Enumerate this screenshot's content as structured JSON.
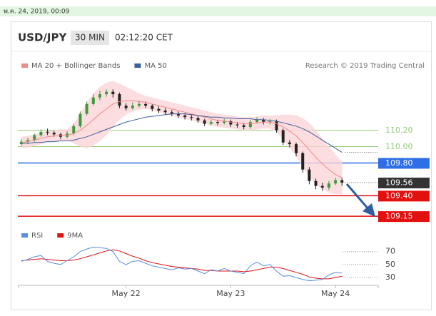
{
  "timestamp": "พ.ค. 24, 2019, 00:09",
  "header": {
    "pair": "USD/JPY",
    "interval": "30 MIN",
    "time": "02:12:20 CET",
    "credit": "Research © 2019 Trading Central"
  },
  "chart_data": [
    {
      "type": "candlestick",
      "x": [
        0,
        1.5,
        3,
        4.5,
        6,
        7.5,
        9,
        10.5,
        12,
        13.5,
        15,
        16.5,
        18,
        19.5,
        21,
        22.5,
        24,
        25.5,
        27,
        28.5,
        30,
        31.5,
        33,
        34.5,
        36,
        37.5,
        39,
        40.5,
        42,
        43.5,
        45,
        46.5,
        48,
        49.5,
        51,
        52.5,
        54,
        55.5,
        57,
        58.5,
        60,
        61.5,
        63,
        64.5,
        66,
        67.5,
        69,
        70.5,
        72,
        73.5
      ],
      "candles": {
        "open": [
          110.03,
          110.06,
          110.08,
          110.14,
          110.18,
          110.17,
          110.15,
          110.12,
          110.16,
          110.25,
          110.4,
          110.52,
          110.6,
          110.64,
          110.67,
          110.64,
          110.5,
          110.47,
          110.5,
          110.52,
          110.5,
          110.46,
          110.44,
          110.42,
          110.4,
          110.38,
          110.36,
          110.35,
          110.32,
          110.28,
          110.3,
          110.29,
          110.31,
          110.27,
          110.26,
          110.24,
          110.3,
          110.33,
          110.3,
          110.31,
          110.2,
          110.05,
          110.03,
          109.92,
          109.72,
          109.58,
          109.52,
          109.5,
          109.55,
          109.59
        ],
        "high": [
          110.09,
          110.11,
          110.16,
          110.21,
          110.22,
          110.19,
          110.17,
          110.19,
          110.28,
          110.43,
          110.55,
          110.64,
          110.68,
          110.7,
          110.7,
          110.66,
          110.53,
          110.54,
          110.56,
          110.55,
          110.52,
          110.49,
          110.47,
          110.45,
          110.43,
          110.41,
          110.39,
          110.37,
          110.34,
          110.33,
          110.33,
          110.34,
          110.33,
          110.3,
          110.29,
          110.33,
          110.36,
          110.35,
          110.34,
          110.33,
          110.22,
          110.08,
          110.05,
          109.94,
          109.75,
          109.61,
          109.56,
          109.58,
          109.62,
          109.62
        ],
        "low": [
          110.01,
          110.03,
          110.06,
          110.12,
          110.14,
          110.12,
          110.09,
          110.1,
          110.14,
          110.23,
          110.38,
          110.5,
          110.57,
          110.61,
          110.6,
          110.47,
          110.44,
          110.45,
          110.48,
          110.47,
          110.43,
          110.41,
          110.39,
          110.37,
          110.35,
          110.33,
          110.32,
          110.29,
          110.25,
          110.26,
          110.26,
          110.27,
          110.24,
          110.23,
          110.21,
          110.22,
          110.28,
          110.27,
          110.27,
          110.17,
          110.02,
          109.99,
          109.88,
          109.68,
          109.54,
          109.48,
          109.46,
          109.47,
          109.53,
          109.52
        ],
        "close": [
          110.06,
          110.08,
          110.14,
          110.18,
          110.17,
          110.15,
          110.12,
          110.16,
          110.25,
          110.4,
          110.52,
          110.6,
          110.64,
          110.67,
          110.64,
          110.5,
          110.47,
          110.5,
          110.52,
          110.5,
          110.46,
          110.44,
          110.42,
          110.4,
          110.38,
          110.36,
          110.35,
          110.32,
          110.28,
          110.3,
          110.29,
          110.31,
          110.27,
          110.26,
          110.24,
          110.3,
          110.33,
          110.3,
          110.31,
          110.2,
          110.05,
          110.03,
          109.92,
          109.72,
          109.58,
          109.52,
          109.5,
          109.55,
          109.59,
          109.56
        ],
        "up_color": "#3c9a3c",
        "down_color": "#222222"
      },
      "series": [
        {
          "name": "MA 20 + Bollinger Bands",
          "color": "#f08a8a",
          "band_color": "#fbd5d8",
          "values": [
            110.05,
            110.06,
            110.08,
            110.1,
            110.12,
            110.13,
            110.14,
            110.14,
            110.16,
            110.2,
            110.26,
            110.33,
            110.4,
            110.46,
            110.52,
            110.55,
            110.56,
            110.56,
            110.55,
            110.54,
            110.52,
            110.5,
            110.48,
            110.46,
            110.44,
            110.42,
            110.4,
            110.38,
            110.36,
            110.34,
            110.32,
            110.31,
            110.3,
            110.29,
            110.28,
            110.28,
            110.29,
            110.3,
            110.3,
            110.28,
            110.24,
            110.19,
            110.13,
            110.05,
            109.96,
            109.87,
            109.79,
            109.72,
            109.66,
            109.62
          ],
          "upper": [
            110.12,
            110.13,
            110.15,
            110.17,
            110.19,
            110.2,
            110.21,
            110.21,
            110.28,
            110.4,
            110.54,
            110.65,
            110.73,
            110.78,
            110.8,
            110.77,
            110.73,
            110.69,
            110.65,
            110.62,
            110.6,
            110.58,
            110.56,
            110.54,
            110.52,
            110.5,
            110.48,
            110.46,
            110.44,
            110.42,
            110.4,
            110.39,
            110.38,
            110.37,
            110.36,
            110.36,
            110.37,
            110.38,
            110.38,
            110.38,
            110.39,
            110.39,
            110.38,
            110.35,
            110.29,
            110.2,
            110.1,
            110.0,
            109.9,
            109.82
          ],
          "lower": [
            109.98,
            109.99,
            110.01,
            110.03,
            110.05,
            110.06,
            110.07,
            110.07,
            110.04,
            110.0,
            109.98,
            110.01,
            110.07,
            110.14,
            110.24,
            110.33,
            110.39,
            110.43,
            110.45,
            110.46,
            110.44,
            110.42,
            110.4,
            110.38,
            110.36,
            110.34,
            110.32,
            110.3,
            110.28,
            110.26,
            110.24,
            110.23,
            110.22,
            110.21,
            110.2,
            110.2,
            110.21,
            110.22,
            110.22,
            110.18,
            110.09,
            109.99,
            109.88,
            109.75,
            109.63,
            109.54,
            109.48,
            109.44,
            109.42,
            109.42
          ]
        },
        {
          "name": "MA 50",
          "color": "#3f5f9f",
          "values": [
            110.04,
            110.04,
            110.05,
            110.05,
            110.06,
            110.06,
            110.07,
            110.07,
            110.08,
            110.1,
            110.12,
            110.15,
            110.18,
            110.21,
            110.24,
            110.27,
            110.3,
            110.32,
            110.34,
            110.36,
            110.37,
            110.38,
            110.39,
            110.4,
            110.4,
            110.4,
            110.39,
            110.38,
            110.37,
            110.36,
            110.36,
            110.35,
            110.35,
            110.34,
            110.34,
            110.34,
            110.33,
            110.33,
            110.32,
            110.31,
            110.29,
            110.27,
            110.25,
            110.22,
            110.18,
            110.13,
            110.08,
            110.03,
            109.98,
            109.93
          ]
        }
      ],
      "levels": [
        {
          "value": 110.2,
          "label": "110.20",
          "color": "#96cc7a",
          "boxed": false,
          "dotted": false
        },
        {
          "value": 110.0,
          "label": "110.00",
          "color": "#96cc7a",
          "boxed": false,
          "dotted": false
        },
        {
          "value": 109.8,
          "label": "109.80",
          "color": "#2f6fe6",
          "boxed": true,
          "dotted": false
        },
        {
          "value": 109.56,
          "label": "109.56",
          "color": "#333333",
          "boxed": true,
          "dotted": true
        },
        {
          "value": 109.4,
          "label": "109.40",
          "color": "#e31010",
          "boxed": true,
          "dotted": false
        },
        {
          "value": 109.15,
          "label": "109.15",
          "color": "#e31010",
          "boxed": true,
          "dotted": false
        }
      ],
      "xlim": [
        -0.8,
        81.8
      ],
      "ylim": [
        109.09,
        111.05
      ]
    },
    {
      "type": "line",
      "series": [
        {
          "name": "RSI",
          "color": "#5b8de0",
          "values": [
            55,
            58,
            62,
            64,
            55,
            52,
            50,
            56,
            62,
            70,
            74,
            77,
            76,
            75,
            70,
            55,
            50,
            55,
            56,
            52,
            48,
            46,
            44,
            42,
            45,
            43,
            44,
            40,
            36,
            42,
            40,
            44,
            40,
            38,
            36,
            48,
            54,
            48,
            50,
            40,
            32,
            33,
            30,
            27,
            25,
            26,
            27,
            34,
            38,
            37
          ]
        },
        {
          "name": "9MA",
          "color": "#e31010",
          "values": [
            56,
            57,
            58,
            59,
            58,
            57,
            56,
            56,
            57,
            59,
            62,
            65,
            68,
            71,
            73,
            71,
            67,
            63,
            60,
            56,
            53,
            51,
            49,
            47,
            46,
            45,
            44,
            43,
            41,
            41,
            40,
            40,
            40,
            40,
            39,
            40,
            42,
            44,
            46,
            46,
            44,
            41,
            38,
            35,
            31,
            29,
            28,
            28,
            30,
            32
          ]
        }
      ],
      "xlim": [
        -0.8,
        81.8
      ],
      "xticks": [
        {
          "value": 24,
          "label": "May 22"
        },
        {
          "value": 48,
          "label": "May 23"
        },
        {
          "value": 72,
          "label": "May 24"
        }
      ],
      "ylim": [
        18,
        84
      ],
      "yticks": [
        70,
        50,
        30
      ],
      "grid": true
    }
  ]
}
